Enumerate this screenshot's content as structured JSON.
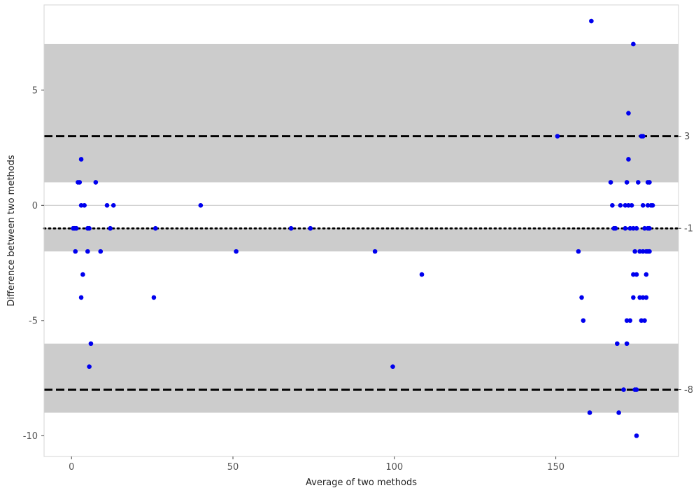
{
  "chart_data": {
    "type": "scatter",
    "title": "",
    "xlabel": "Average of two methods",
    "ylabel": "Difference between two methods",
    "xlim": [
      -8.5,
      188
    ],
    "ylim": [
      -10.9,
      8.7
    ],
    "x_ticks": [
      0,
      50,
      100,
      150
    ],
    "y_ticks": [
      -10,
      -5,
      0,
      5
    ],
    "x_tick_labels": [
      "0",
      "50",
      "100",
      "150"
    ],
    "y_tick_labels": [
      "-10",
      "-5",
      "0",
      "5"
    ],
    "grid": false,
    "zero_line": 0,
    "shaded_bands": [
      {
        "y0": 1,
        "y1": 7
      },
      {
        "y0": -9,
        "y1": -6
      },
      {
        "y0": -2,
        "y1": -1
      }
    ],
    "reference_lines": [
      {
        "y": 3,
        "style": "dashed",
        "label": "3"
      },
      {
        "y": -1,
        "style": "dotted",
        "label": "-1"
      },
      {
        "y": -8,
        "style": "dashed",
        "label": "-8"
      }
    ],
    "point_color": "#0000ee",
    "band_color": "#cccccc",
    "points": [
      [
        0.5,
        -1
      ],
      [
        1,
        -1
      ],
      [
        1.5,
        -1
      ],
      [
        1.2,
        -2
      ],
      [
        2,
        1
      ],
      [
        2.5,
        1
      ],
      [
        3,
        2
      ],
      [
        3,
        0
      ],
      [
        4,
        0
      ],
      [
        3.5,
        -3
      ],
      [
        3,
        -4
      ],
      [
        5,
        -1
      ],
      [
        5.5,
        -1
      ],
      [
        5,
        -2
      ],
      [
        6,
        -6
      ],
      [
        5.5,
        -7
      ],
      [
        7.5,
        1
      ],
      [
        9,
        -2
      ],
      [
        11,
        0
      ],
      [
        12,
        -1
      ],
      [
        13,
        0
      ],
      [
        26,
        -1
      ],
      [
        25.5,
        -4
      ],
      [
        40,
        0
      ],
      [
        51,
        -2
      ],
      [
        68,
        -1
      ],
      [
        74,
        -1
      ],
      [
        94,
        -2
      ],
      [
        99.5,
        -7
      ],
      [
        108.5,
        -3
      ],
      [
        150.5,
        3
      ],
      [
        157,
        -2
      ],
      [
        158,
        -4
      ],
      [
        158.5,
        -5
      ],
      [
        160.5,
        -9
      ],
      [
        161,
        8
      ],
      [
        167,
        1
      ],
      [
        167.5,
        0
      ],
      [
        168,
        -1
      ],
      [
        168.5,
        -1
      ],
      [
        169,
        -6
      ],
      [
        169.5,
        -9
      ],
      [
        170,
        0
      ],
      [
        171,
        -8
      ],
      [
        171.5,
        0
      ],
      [
        171.5,
        -1
      ],
      [
        172,
        1
      ],
      [
        172,
        -5
      ],
      [
        172,
        -6
      ],
      [
        172.5,
        2
      ],
      [
        172.5,
        4
      ],
      [
        172.5,
        0
      ],
      [
        173,
        -1
      ],
      [
        173,
        -5
      ],
      [
        173.5,
        0
      ],
      [
        174,
        7
      ],
      [
        174,
        -1
      ],
      [
        174,
        -3
      ],
      [
        174,
        -4
      ],
      [
        174.5,
        -2
      ],
      [
        174.5,
        -8
      ],
      [
        175,
        -1
      ],
      [
        175,
        -3
      ],
      [
        175,
        -8
      ],
      [
        175,
        -10
      ],
      [
        175.5,
        1
      ],
      [
        176,
        -2
      ],
      [
        176,
        -4
      ],
      [
        176.5,
        3
      ],
      [
        176.5,
        -5
      ],
      [
        177,
        3
      ],
      [
        177,
        0
      ],
      [
        177,
        -2
      ],
      [
        177,
        -4
      ],
      [
        177.5,
        -1
      ],
      [
        177.5,
        -5
      ],
      [
        178,
        -2
      ],
      [
        178,
        -3
      ],
      [
        178,
        -4
      ],
      [
        178.5,
        1
      ],
      [
        178.5,
        0
      ],
      [
        178.5,
        -1
      ],
      [
        178.5,
        -2
      ],
      [
        179,
        1
      ],
      [
        179,
        -1
      ],
      [
        179,
        -2
      ],
      [
        179.5,
        0
      ],
      [
        180,
        0
      ]
    ]
  }
}
